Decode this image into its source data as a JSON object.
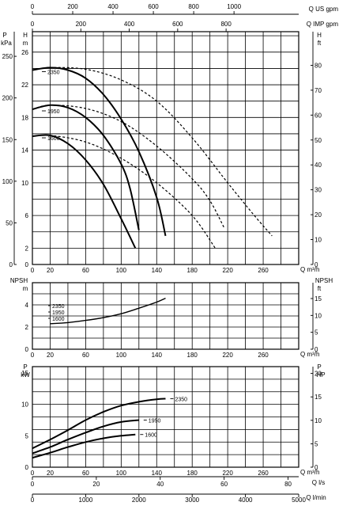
{
  "chart_data": [
    {
      "type": "line",
      "panel": "head",
      "x_axis": {
        "label": "Q m³/h",
        "ticks": [
          0,
          20,
          60,
          100,
          140,
          180,
          220,
          260
        ],
        "range": [
          0,
          300
        ],
        "grid": [
          0,
          20,
          40,
          60,
          80,
          100,
          120,
          140,
          160,
          180,
          200,
          220,
          240,
          260,
          280,
          300
        ]
      },
      "left_axis_outer": {
        "unit_label": "P",
        "unit_sub": "kPa",
        "ticks": [
          "0",
          "50",
          "100",
          "150",
          "200",
          "250"
        ]
      },
      "left_axis_inner": {
        "unit_label": "H",
        "unit_sub": "m",
        "ticks": [
          "2",
          "6",
          "10",
          "14",
          "18",
          "22",
          "26"
        ],
        "range": [
          0,
          28.5
        ]
      },
      "right_axis": {
        "unit_label": "H",
        "unit_sub": "ft",
        "ticks": [
          "0",
          "10",
          "20",
          "30",
          "40",
          "50",
          "60",
          "70",
          "80"
        ]
      },
      "top_axis_1": {
        "label": "Q US gpm",
        "ticks": [
          "0",
          "200",
          "400",
          "600",
          "800",
          "1000"
        ]
      },
      "top_axis_2": {
        "label": "Q IMP gpm",
        "ticks": [
          "0",
          "200",
          "400",
          "600",
          "800"
        ]
      },
      "series": [
        {
          "name": "2350",
          "style": "solid",
          "x": [
            0,
            20,
            40,
            60,
            80,
            100,
            120,
            140,
            150
          ],
          "y": [
            23.8,
            24.1,
            23.8,
            22.8,
            20.8,
            17.8,
            13.8,
            8.2,
            3.5
          ]
        },
        {
          "name": "1950",
          "style": "solid",
          "x": [
            0,
            20,
            40,
            60,
            80,
            100,
            110,
            120
          ],
          "y": [
            19,
            19.5,
            19.2,
            18,
            15.8,
            12.3,
            9.3,
            4.2
          ]
        },
        {
          "name": "1600",
          "style": "solid",
          "x": [
            0,
            20,
            40,
            60,
            80,
            100,
            116
          ],
          "y": [
            15.7,
            15.8,
            14.8,
            12.8,
            9.8,
            5.6,
            2
          ]
        },
        {
          "name": "2350",
          "style": "dashed",
          "x": [
            0,
            20,
            60,
            100,
            140,
            180,
            220,
            250,
            270
          ],
          "y": [
            23.8,
            24.1,
            23.9,
            22.6,
            20,
            15.5,
            10,
            6,
            3.5
          ]
        },
        {
          "name": "1950",
          "style": "dashed",
          "x": [
            0,
            20,
            60,
            100,
            140,
            180,
            200,
            216
          ],
          "y": [
            19,
            19.5,
            19.1,
            17.5,
            14.5,
            10.5,
            7.8,
            4.5
          ]
        },
        {
          "name": "1600",
          "style": "dashed",
          "x": [
            0,
            20,
            60,
            100,
            140,
            180,
            206
          ],
          "y": [
            15.7,
            15.8,
            15,
            13,
            10,
            6,
            2
          ]
        }
      ]
    },
    {
      "type": "line",
      "panel": "npsh",
      "x_axis": {
        "label": "Q m³/h",
        "ticks": [
          0,
          20,
          60,
          100,
          140,
          180,
          220,
          260
        ],
        "range": [
          0,
          300
        ]
      },
      "left_axis": {
        "unit_label": "NPSH",
        "unit_sub": "m",
        "ticks": [
          "0",
          "2",
          "4"
        ],
        "range": [
          0,
          6
        ]
      },
      "right_axis": {
        "unit_label": "NPSH",
        "unit_sub": "ft",
        "ticks": [
          "0",
          "5",
          "10",
          "15"
        ]
      },
      "series": [
        {
          "name": "2350 / 1950 / 1600",
          "x": [
            20,
            40,
            60,
            80,
            100,
            120,
            140,
            150
          ],
          "y": [
            2.3,
            2.4,
            2.6,
            2.85,
            3.2,
            3.7,
            4.25,
            4.6
          ]
        }
      ],
      "series_labels": [
        "2350",
        "1950",
        "1600"
      ]
    },
    {
      "type": "line",
      "panel": "power",
      "x_axis": {
        "label": "Q m³/h",
        "ticks": [
          0,
          20,
          60,
          100,
          140,
          180,
          220,
          260
        ],
        "range": [
          0,
          300
        ]
      },
      "left_axis": {
        "unit_label": "P",
        "unit_sub": "kW",
        "ticks": [
          "0",
          "5",
          "10",
          "15"
        ],
        "range": [
          0,
          16
        ]
      },
      "right_axis": {
        "unit_label": "P",
        "unit_sub": "HP",
        "ticks": [
          "0",
          "5",
          "10",
          "15",
          "20"
        ]
      },
      "bottom_axis_1": {
        "label": "Q l/s",
        "ticks": [
          "0",
          "20",
          "40",
          "60",
          "80"
        ]
      },
      "bottom_axis_2": {
        "label": "Q l/min",
        "ticks": [
          "0",
          "1000",
          "2000",
          "3000",
          "4000",
          "5000"
        ]
      },
      "series": [
        {
          "name": "2350",
          "x": [
            0,
            20,
            40,
            60,
            80,
            100,
            120,
            140,
            150
          ],
          "y": [
            3,
            4.4,
            5.9,
            7.5,
            8.8,
            9.8,
            10.4,
            10.8,
            10.9
          ]
        },
        {
          "name": "1950",
          "x": [
            0,
            20,
            40,
            60,
            80,
            100,
            120
          ],
          "y": [
            2.2,
            3.2,
            4.4,
            5.5,
            6.5,
            7.2,
            7.5
          ]
        },
        {
          "name": "1600",
          "x": [
            0,
            20,
            40,
            60,
            80,
            100,
            116
          ],
          "y": [
            1.5,
            2.3,
            3.2,
            4,
            4.6,
            5,
            5.2
          ]
        }
      ]
    }
  ]
}
